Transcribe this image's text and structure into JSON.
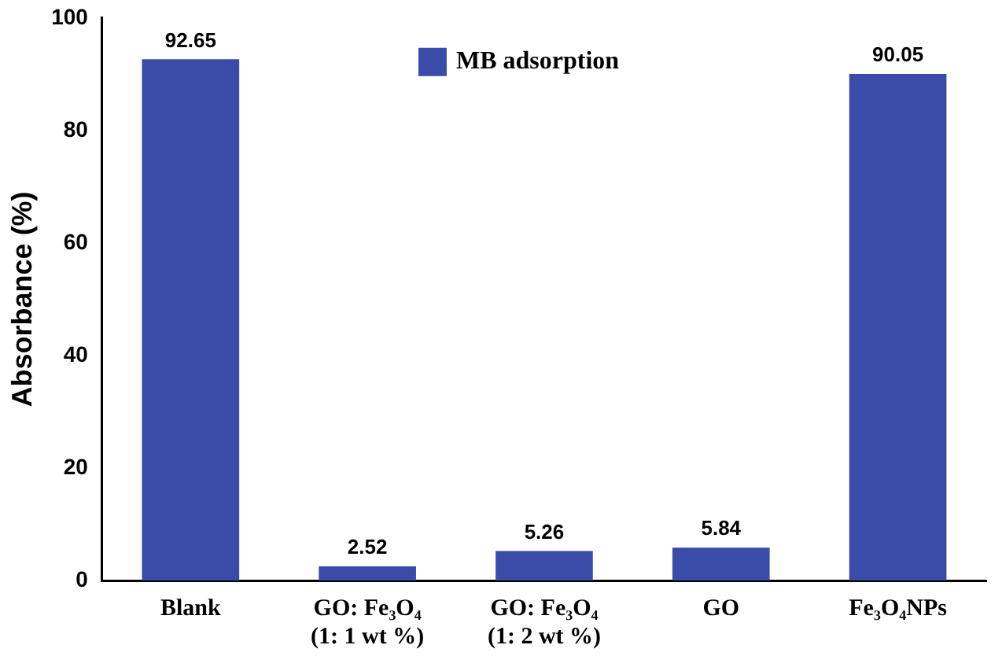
{
  "chart_data": {
    "type": "bar",
    "ylabel": "Absorbance (%)",
    "categories": [
      "Blank",
      "GO: Fe₃O₄ (1: 1 wt %)",
      "GO: Fe₃O₄ (1: 2 wt %)",
      "GO",
      "Fe₃O₄NPs"
    ],
    "series": [
      {
        "name": "MB adsorption",
        "color": "#3a4ca8",
        "values": [
          92.65,
          2.52,
          5.26,
          5.84,
          90.05
        ]
      }
    ],
    "ylim": [
      0,
      100
    ],
    "yticks": [
      0,
      20,
      40,
      60,
      80,
      100
    ],
    "grid": false,
    "legend": "top",
    "data_labels": true
  }
}
